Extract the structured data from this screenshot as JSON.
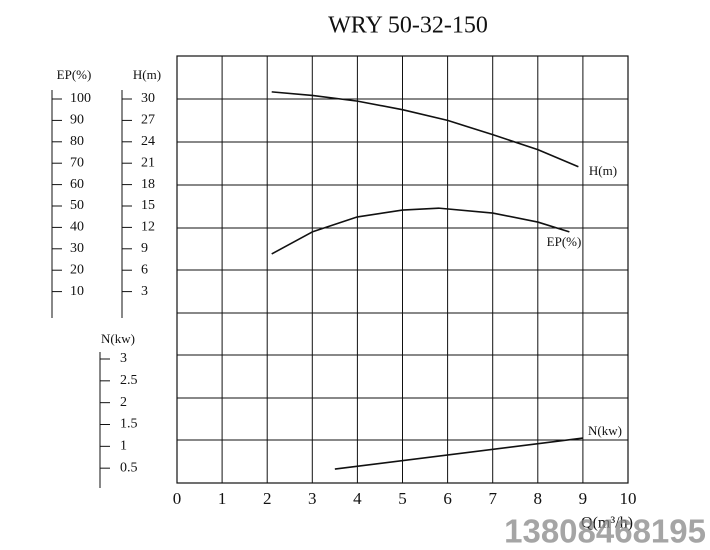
{
  "chart_data": {
    "type": "line",
    "title": "WRY 50-32-150",
    "x_label": "Q(m³/h)",
    "xlim": [
      0,
      10
    ],
    "xticks": [
      0,
      1,
      2,
      3,
      4,
      5,
      6,
      7,
      8,
      9,
      10
    ],
    "axes": [
      {
        "label": "EP(%)",
        "ylim": [
          0,
          100
        ],
        "yticks": [
          10,
          20,
          30,
          40,
          50,
          60,
          70,
          80,
          90,
          100
        ]
      },
      {
        "label": "H(m)",
        "ylim": [
          0,
          30
        ],
        "yticks": [
          3,
          6,
          9,
          12,
          15,
          18,
          21,
          24,
          27,
          30
        ]
      },
      {
        "label": "N(kw)",
        "ylim": [
          0,
          3
        ],
        "yticks": [
          0.5,
          1,
          1.5,
          2,
          2.5,
          3
        ]
      }
    ],
    "series": [
      {
        "name": "H(m)",
        "axis": 1,
        "color": "#111111",
        "x": [
          2.1,
          3,
          4,
          5,
          6,
          7,
          8,
          8.9
        ],
        "values": [
          31,
          30.5,
          29.7,
          28.5,
          27,
          25,
          22.9,
          20.5
        ]
      },
      {
        "name": "EP(%)",
        "axis": 0,
        "color": "#111111",
        "x": [
          2.1,
          3,
          4,
          5,
          5.8,
          7,
          8,
          8.7
        ],
        "values": [
          27.6,
          37.9,
          44.9,
          48.1,
          49,
          46.7,
          42.5,
          37.9
        ]
      },
      {
        "name": "N(kw)",
        "axis": 2,
        "color": "#111111",
        "x": [
          3.5,
          9
        ],
        "values": [
          0.48,
          1.19
        ]
      }
    ],
    "watermark": "13808468195"
  }
}
